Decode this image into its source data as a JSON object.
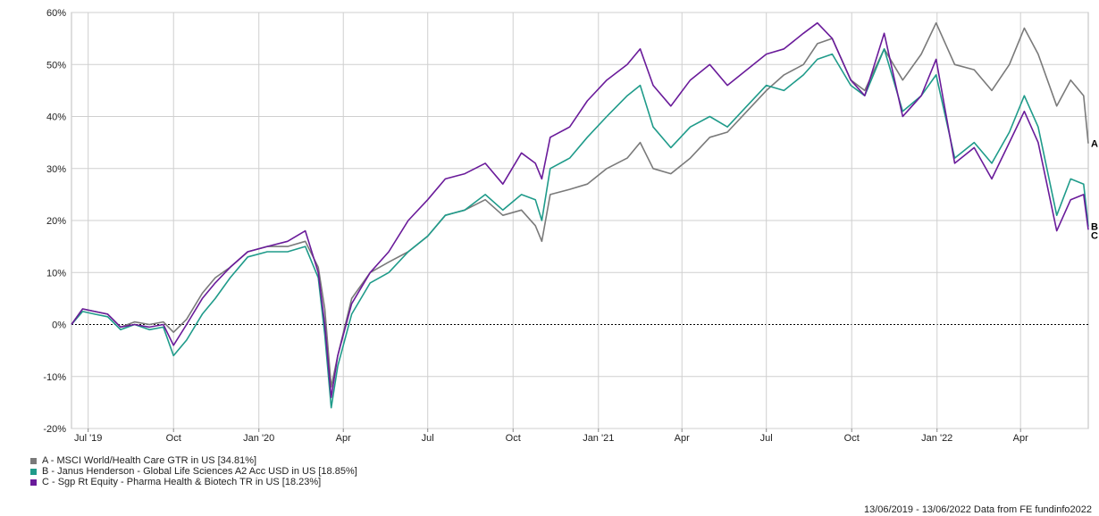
{
  "chart_data": {
    "type": "line",
    "ylim": [
      -20,
      60
    ],
    "y_ticks": [
      -20,
      -10,
      0,
      10,
      20,
      30,
      40,
      50,
      60
    ],
    "y_tick_labels": [
      "-20%",
      "-10%",
      "0%",
      "10%",
      "20%",
      "30%",
      "40%",
      "50%",
      "60%"
    ],
    "x_ticks": [
      {
        "date": "2019-07-01",
        "label": "Jul '19"
      },
      {
        "date": "2019-10-01",
        "label": "Oct"
      },
      {
        "date": "2020-01-01",
        "label": "Jan '20"
      },
      {
        "date": "2020-04-01",
        "label": "Apr"
      },
      {
        "date": "2020-07-01",
        "label": "Jul"
      },
      {
        "date": "2020-10-01",
        "label": "Oct"
      },
      {
        "date": "2021-01-01",
        "label": "Jan '21"
      },
      {
        "date": "2021-04-01",
        "label": "Apr"
      },
      {
        "date": "2021-07-01",
        "label": "Jul"
      },
      {
        "date": "2021-10-01",
        "label": "Oct"
      },
      {
        "date": "2022-01-01",
        "label": "Jan '22"
      },
      {
        "date": "2022-04-01",
        "label": "Apr"
      }
    ],
    "x_range": [
      "2019-06-13",
      "2022-06-13"
    ],
    "grid": true,
    "zero_line": "dotted",
    "series": [
      {
        "id": "A",
        "name": "A - MSCI World/Health Care GTR in US [34.81%]",
        "end_label": "A",
        "color": "#7a7a7a",
        "points": [
          [
            "2019-06-13",
            0
          ],
          [
            "2019-06-25",
            3
          ],
          [
            "2019-07-08",
            2.5
          ],
          [
            "2019-07-22",
            2
          ],
          [
            "2019-08-05",
            -0.5
          ],
          [
            "2019-08-20",
            0.5
          ],
          [
            "2019-09-05",
            0
          ],
          [
            "2019-09-20",
            0.5
          ],
          [
            "2019-10-01",
            -1.5
          ],
          [
            "2019-10-15",
            1
          ],
          [
            "2019-11-01",
            6
          ],
          [
            "2019-11-15",
            9
          ],
          [
            "2019-12-01",
            11
          ],
          [
            "2019-12-20",
            14
          ],
          [
            "2020-01-10",
            15
          ],
          [
            "2020-02-01",
            15
          ],
          [
            "2020-02-20",
            16
          ],
          [
            "2020-03-05",
            11
          ],
          [
            "2020-03-12",
            3
          ],
          [
            "2020-03-19",
            -12
          ],
          [
            "2020-03-26",
            -6
          ],
          [
            "2020-04-10",
            5
          ],
          [
            "2020-04-30",
            10
          ],
          [
            "2020-05-20",
            12
          ],
          [
            "2020-06-10",
            14
          ],
          [
            "2020-07-01",
            17
          ],
          [
            "2020-07-20",
            21
          ],
          [
            "2020-08-10",
            22
          ],
          [
            "2020-09-01",
            24
          ],
          [
            "2020-09-20",
            21
          ],
          [
            "2020-10-10",
            22
          ],
          [
            "2020-10-25",
            19
          ],
          [
            "2020-11-01",
            16
          ],
          [
            "2020-11-10",
            25
          ],
          [
            "2020-12-01",
            26
          ],
          [
            "2020-12-20",
            27
          ],
          [
            "2021-01-10",
            30
          ],
          [
            "2021-02-01",
            32
          ],
          [
            "2021-02-15",
            35
          ],
          [
            "2021-03-01",
            30
          ],
          [
            "2021-03-20",
            29
          ],
          [
            "2021-04-10",
            32
          ],
          [
            "2021-05-01",
            36
          ],
          [
            "2021-05-20",
            37
          ],
          [
            "2021-06-10",
            41
          ],
          [
            "2021-07-01",
            45
          ],
          [
            "2021-07-20",
            48
          ],
          [
            "2021-08-10",
            50
          ],
          [
            "2021-08-25",
            54
          ],
          [
            "2021-09-10",
            55
          ],
          [
            "2021-09-30",
            47
          ],
          [
            "2021-10-15",
            45
          ],
          [
            "2021-11-05",
            53
          ],
          [
            "2021-11-25",
            47
          ],
          [
            "2021-12-15",
            52
          ],
          [
            "2021-12-31",
            58
          ],
          [
            "2022-01-20",
            50
          ],
          [
            "2022-02-10",
            49
          ],
          [
            "2022-03-01",
            45
          ],
          [
            "2022-03-20",
            50
          ],
          [
            "2022-04-05",
            57
          ],
          [
            "2022-04-20",
            52
          ],
          [
            "2022-05-10",
            42
          ],
          [
            "2022-05-25",
            47
          ],
          [
            "2022-06-08",
            44
          ],
          [
            "2022-06-13",
            34.81
          ]
        ]
      },
      {
        "id": "B",
        "name": "B - Janus Henderson - Global Life Sciences A2 Acc USD in US [18.85%]",
        "end_label": "B",
        "color": "#1f9b8a",
        "points": [
          [
            "2019-06-13",
            0
          ],
          [
            "2019-06-25",
            2.5
          ],
          [
            "2019-07-08",
            2
          ],
          [
            "2019-07-22",
            1.5
          ],
          [
            "2019-08-05",
            -1
          ],
          [
            "2019-08-20",
            0
          ],
          [
            "2019-09-05",
            -1
          ],
          [
            "2019-09-20",
            -0.5
          ],
          [
            "2019-10-01",
            -6
          ],
          [
            "2019-10-15",
            -3
          ],
          [
            "2019-11-01",
            2
          ],
          [
            "2019-11-15",
            5
          ],
          [
            "2019-12-01",
            9
          ],
          [
            "2019-12-20",
            13
          ],
          [
            "2020-01-10",
            14
          ],
          [
            "2020-02-01",
            14
          ],
          [
            "2020-02-20",
            15
          ],
          [
            "2020-03-05",
            9
          ],
          [
            "2020-03-12",
            -2
          ],
          [
            "2020-03-19",
            -16
          ],
          [
            "2020-03-26",
            -8
          ],
          [
            "2020-04-10",
            2
          ],
          [
            "2020-04-30",
            8
          ],
          [
            "2020-05-20",
            10
          ],
          [
            "2020-06-10",
            14
          ],
          [
            "2020-07-01",
            17
          ],
          [
            "2020-07-20",
            21
          ],
          [
            "2020-08-10",
            22
          ],
          [
            "2020-09-01",
            25
          ],
          [
            "2020-09-20",
            22
          ],
          [
            "2020-10-10",
            25
          ],
          [
            "2020-10-25",
            24
          ],
          [
            "2020-11-01",
            20
          ],
          [
            "2020-11-10",
            30
          ],
          [
            "2020-12-01",
            32
          ],
          [
            "2020-12-20",
            36
          ],
          [
            "2021-01-10",
            40
          ],
          [
            "2021-02-01",
            44
          ],
          [
            "2021-02-15",
            46
          ],
          [
            "2021-03-01",
            38
          ],
          [
            "2021-03-20",
            34
          ],
          [
            "2021-04-10",
            38
          ],
          [
            "2021-05-01",
            40
          ],
          [
            "2021-05-20",
            38
          ],
          [
            "2021-06-10",
            42
          ],
          [
            "2021-07-01",
            46
          ],
          [
            "2021-07-20",
            45
          ],
          [
            "2021-08-10",
            48
          ],
          [
            "2021-08-25",
            51
          ],
          [
            "2021-09-10",
            52
          ],
          [
            "2021-09-30",
            46
          ],
          [
            "2021-10-15",
            44
          ],
          [
            "2021-11-05",
            53
          ],
          [
            "2021-11-25",
            41
          ],
          [
            "2021-12-15",
            44
          ],
          [
            "2021-12-31",
            48
          ],
          [
            "2022-01-20",
            32
          ],
          [
            "2022-02-10",
            35
          ],
          [
            "2022-03-01",
            31
          ],
          [
            "2022-03-20",
            37
          ],
          [
            "2022-04-05",
            44
          ],
          [
            "2022-04-20",
            38
          ],
          [
            "2022-05-10",
            21
          ],
          [
            "2022-05-25",
            28
          ],
          [
            "2022-06-08",
            27
          ],
          [
            "2022-06-13",
            18.85
          ]
        ]
      },
      {
        "id": "C",
        "name": "C - Sgp Rt Equity - Pharma Health & Biotech TR in US [18.23%]",
        "end_label": "C",
        "color": "#6a1b9a",
        "points": [
          [
            "2019-06-13",
            0
          ],
          [
            "2019-06-25",
            3
          ],
          [
            "2019-07-08",
            2.5
          ],
          [
            "2019-07-22",
            2
          ],
          [
            "2019-08-05",
            -0.5
          ],
          [
            "2019-08-20",
            0
          ],
          [
            "2019-09-05",
            -0.5
          ],
          [
            "2019-09-20",
            0
          ],
          [
            "2019-10-01",
            -4
          ],
          [
            "2019-10-15",
            0
          ],
          [
            "2019-11-01",
            5
          ],
          [
            "2019-11-15",
            8
          ],
          [
            "2019-12-01",
            11
          ],
          [
            "2019-12-20",
            14
          ],
          [
            "2020-01-10",
            15
          ],
          [
            "2020-02-01",
            16
          ],
          [
            "2020-02-20",
            18
          ],
          [
            "2020-03-05",
            10
          ],
          [
            "2020-03-12",
            0
          ],
          [
            "2020-03-19",
            -14
          ],
          [
            "2020-03-26",
            -6
          ],
          [
            "2020-04-10",
            4
          ],
          [
            "2020-04-30",
            10
          ],
          [
            "2020-05-20",
            14
          ],
          [
            "2020-06-10",
            20
          ],
          [
            "2020-07-01",
            24
          ],
          [
            "2020-07-20",
            28
          ],
          [
            "2020-08-10",
            29
          ],
          [
            "2020-09-01",
            31
          ],
          [
            "2020-09-20",
            27
          ],
          [
            "2020-10-10",
            33
          ],
          [
            "2020-10-25",
            31
          ],
          [
            "2020-11-01",
            28
          ],
          [
            "2020-11-10",
            36
          ],
          [
            "2020-12-01",
            38
          ],
          [
            "2020-12-20",
            43
          ],
          [
            "2021-01-10",
            47
          ],
          [
            "2021-02-01",
            50
          ],
          [
            "2021-02-15",
            53
          ],
          [
            "2021-03-01",
            46
          ],
          [
            "2021-03-20",
            42
          ],
          [
            "2021-04-10",
            47
          ],
          [
            "2021-05-01",
            50
          ],
          [
            "2021-05-20",
            46
          ],
          [
            "2021-06-10",
            49
          ],
          [
            "2021-07-01",
            52
          ],
          [
            "2021-07-20",
            53
          ],
          [
            "2021-08-10",
            56
          ],
          [
            "2021-08-25",
            58
          ],
          [
            "2021-09-10",
            55
          ],
          [
            "2021-09-30",
            47
          ],
          [
            "2021-10-15",
            44
          ],
          [
            "2021-11-05",
            56
          ],
          [
            "2021-11-25",
            40
          ],
          [
            "2021-12-15",
            44
          ],
          [
            "2021-12-31",
            51
          ],
          [
            "2022-01-20",
            31
          ],
          [
            "2022-02-10",
            34
          ],
          [
            "2022-03-01",
            28
          ],
          [
            "2022-03-20",
            35
          ],
          [
            "2022-04-05",
            41
          ],
          [
            "2022-04-20",
            35
          ],
          [
            "2022-05-10",
            18
          ],
          [
            "2022-05-25",
            24
          ],
          [
            "2022-06-08",
            25
          ],
          [
            "2022-06-13",
            18.23
          ]
        ]
      }
    ]
  },
  "footer": "13/06/2019 - 13/06/2022 Data from FE fundinfo2022"
}
